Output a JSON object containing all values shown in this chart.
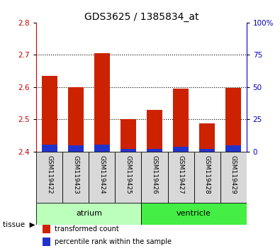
{
  "title": "GDS3625 / 1385834_at",
  "samples": [
    "GSM119422",
    "GSM119423",
    "GSM119424",
    "GSM119425",
    "GSM119426",
    "GSM119427",
    "GSM119428",
    "GSM119429"
  ],
  "red_values": [
    2.635,
    2.6,
    2.705,
    2.5,
    2.53,
    2.595,
    2.487,
    2.597
  ],
  "blue_values": [
    2.422,
    2.42,
    2.422,
    2.408,
    2.408,
    2.415,
    2.407,
    2.418
  ],
  "baseline": 2.4,
  "ylim_left": [
    2.4,
    2.8
  ],
  "ylim_right": [
    0,
    100
  ],
  "yticks_left": [
    2.4,
    2.5,
    2.6,
    2.7,
    2.8
  ],
  "yticks_right": [
    0,
    25,
    50,
    75,
    100
  ],
  "ytick_labels_right": [
    "0",
    "25",
    "50",
    "75",
    "100%"
  ],
  "left_color": "#cc0000",
  "right_color": "#0000bb",
  "bar_red": "#cc2200",
  "bar_blue": "#2233cc",
  "groups": [
    {
      "label": "atrium",
      "indices": [
        0,
        1,
        2,
        3
      ],
      "color": "#bbffbb"
    },
    {
      "label": "ventricle",
      "indices": [
        4,
        5,
        6,
        7
      ],
      "color": "#44ee44"
    }
  ],
  "tissue_label": "tissue",
  "legend_items": [
    {
      "label": "transformed count",
      "color": "#cc2200"
    },
    {
      "label": "percentile rank within the sample",
      "color": "#2233cc"
    }
  ],
  "tick_label_fontsize": 7.5,
  "title_fontsize": 10,
  "bg_color": "#ffffff"
}
